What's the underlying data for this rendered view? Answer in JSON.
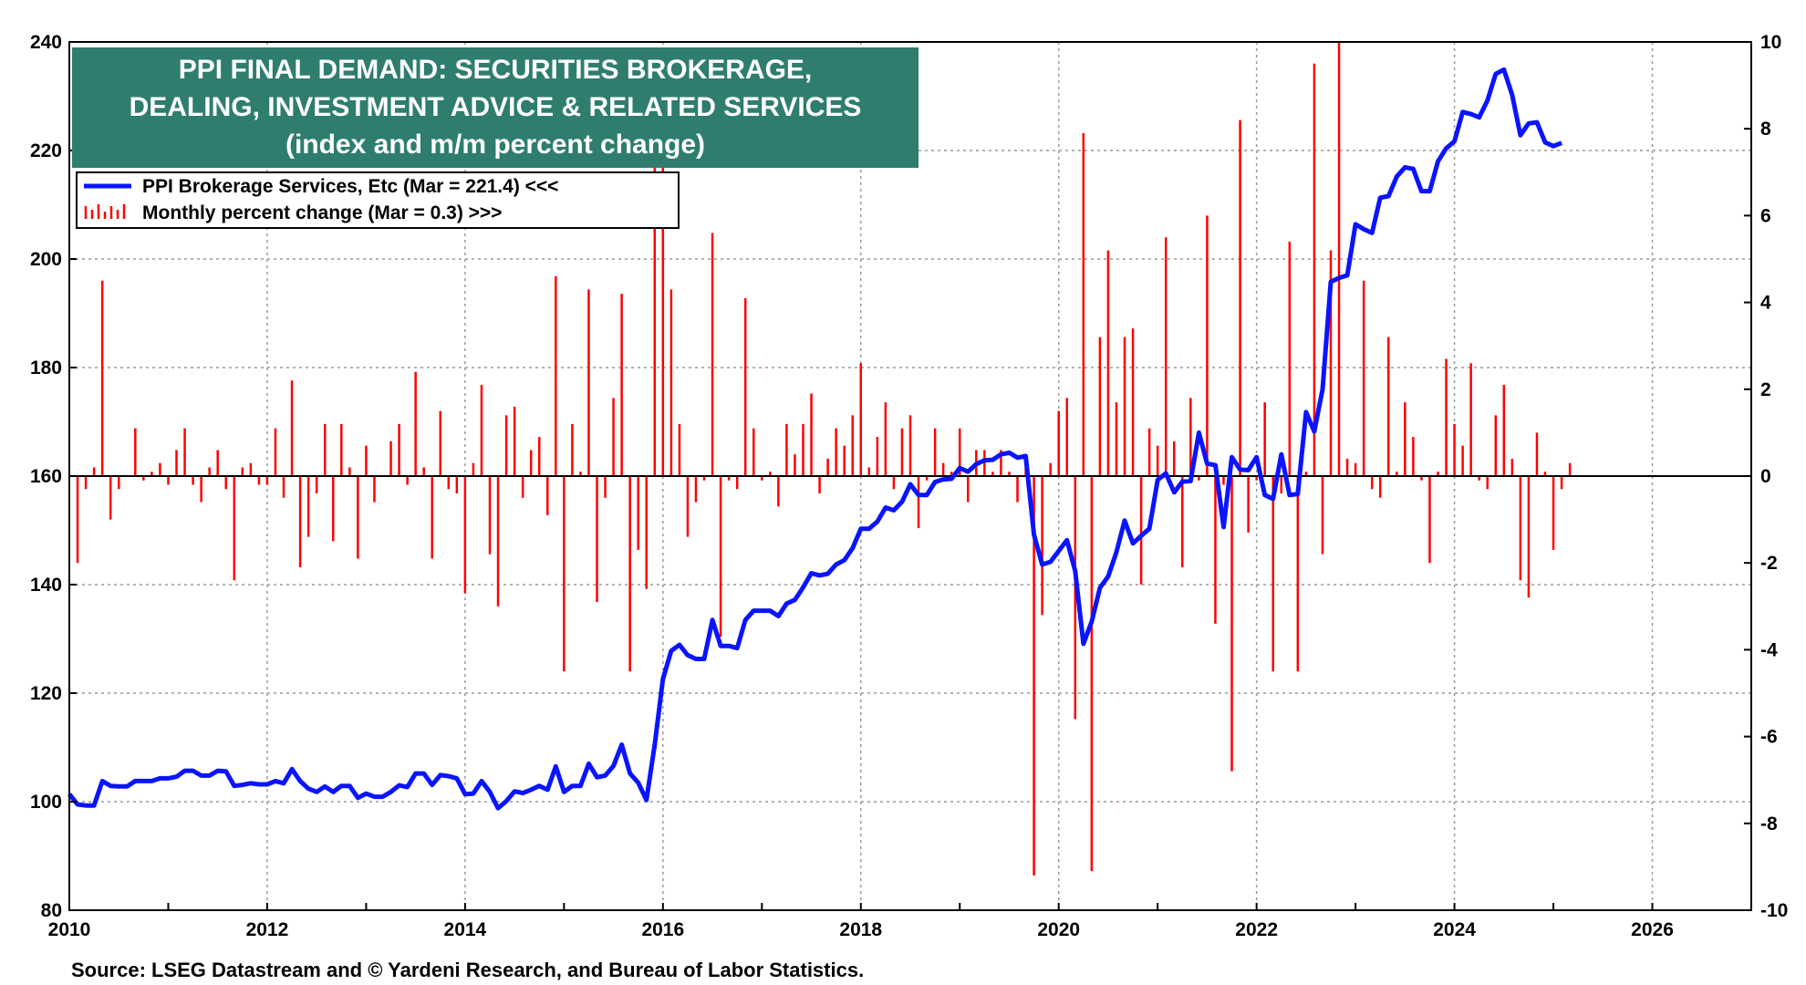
{
  "chart_data": {
    "type": "line+bar",
    "title": [
      "PPI FINAL DEMAND: SECURITIES BROKERAGE,",
      "DEALING, INVESTMENT ADVICE & RELATED SERVICES",
      "(index and m/m percent change)"
    ],
    "colors": {
      "title_bg": "#2e7d6e",
      "line": "#0a14ff",
      "bars": "#ff0000",
      "grid": "#9a9a9a"
    },
    "legend": [
      {
        "label": "PPI Brokerage Services, Etc  (Mar = 221.4) <<<",
        "style": "line"
      },
      {
        "label": "Monthly percent change  (Mar = 0.3) >>>",
        "style": "bars"
      }
    ],
    "x_axis": {
      "min": 2010,
      "max": 2027,
      "ticks": [
        "2010",
        "2012",
        "2014",
        "2016",
        "2018",
        "2020",
        "2022",
        "2024",
        "2026"
      ]
    },
    "y_left": {
      "min": 80,
      "max": 240,
      "ticks": [
        "80",
        "100",
        "120",
        "140",
        "160",
        "180",
        "200",
        "220",
        "240"
      ]
    },
    "y_right": {
      "min": -10,
      "max": 10,
      "ticks": [
        "-10",
        "-8",
        "-6",
        "-4",
        "-2",
        "0",
        "2",
        "4",
        "6",
        "8",
        "10"
      ]
    },
    "series_index": {
      "name": "PPI Brokerage Services, Etc",
      "start": 2010.0,
      "step": 0.0833333,
      "values": [
        101.4,
        99.5,
        99.3,
        99.3,
        103.8,
        102.9,
        102.8,
        102.8,
        103.8,
        103.8,
        103.8,
        104.3,
        104.3,
        104.6,
        105.7,
        105.7,
        104.8,
        104.8,
        105.7,
        105.6,
        102.9,
        103.1,
        103.4,
        103.2,
        103.2,
        103.8,
        103.4,
        106,
        103.8,
        102.4,
        101.8,
        102.8,
        101.8,
        102.9,
        102.9,
        100.7,
        101.5,
        100.9,
        100.9,
        101.8,
        103,
        102.7,
        105.2,
        105.2,
        103.1,
        104.9,
        104.7,
        104.3,
        101.4,
        101.5,
        103.8,
        101.8,
        98.8,
        100.1,
        101.9,
        101.6,
        102.2,
        102.9,
        102.2,
        106.5,
        101.8,
        102.9,
        102.9,
        107,
        104.5,
        104.8,
        106.6,
        110.5,
        105.2,
        103.5,
        100.3,
        110.5,
        122.6,
        127.8,
        128.9,
        127,
        126.3,
        126.3,
        133.5,
        128.7,
        128.7,
        128.3,
        133.5,
        135.2,
        135.2,
        135.2,
        134.2,
        136.5,
        137.2,
        139.5,
        142.1,
        141.7,
        142,
        143.7,
        144.5,
        146.7,
        150.3,
        150.3,
        151.6,
        154.2,
        153.7,
        155.3,
        158.5,
        156.5,
        156.5,
        158.9,
        159.4,
        159.5,
        161.5,
        160.8,
        162.2,
        162.9,
        163,
        164,
        164.3,
        163.4,
        163.7,
        149.2,
        143.7,
        144.2,
        146.2,
        148.2,
        142.5,
        129.1,
        133.2,
        139.4,
        141.5,
        146,
        151.8,
        147.6,
        149,
        150.3,
        159.3,
        160.5,
        157,
        159,
        159.1,
        168,
        162.3,
        162,
        150.6,
        163.5,
        161.2,
        161.1,
        163.5,
        156.5,
        155.8,
        164,
        156.5,
        156.7,
        171.8,
        168.2,
        176,
        195.8,
        196.5,
        197,
        206.4,
        205.5,
        204.8,
        211.3,
        211.6,
        215.2,
        216.9,
        216.6,
        212.5,
        212.5,
        218,
        220.4,
        221.7,
        227.1,
        226.7,
        226.1,
        229.2,
        234.1,
        234.9,
        230.2,
        222.8,
        225,
        225.2,
        221.5,
        220.8,
        221.4
      ]
    },
    "series_change": {
      "name": "Monthly percent change",
      "start": 2010.0,
      "step": 0.0833333,
      "values": [
        0,
        -2,
        -0.3,
        0.2,
        4.5,
        -1,
        -0.3,
        0,
        1.1,
        -0.1,
        0.1,
        0.3,
        -0.2,
        0.6,
        1.1,
        -0.2,
        -0.6,
        0.2,
        0.6,
        -0.3,
        -2.4,
        0.2,
        0.3,
        -0.2,
        -0.2,
        1.1,
        -0.5,
        2.2,
        -2.1,
        -1.4,
        -0.4,
        1.2,
        -1.5,
        1.2,
        0.2,
        -1.9,
        0.7,
        -0.6,
        0,
        0.8,
        1.2,
        -0.2,
        2.4,
        0.2,
        -1.9,
        1.5,
        -0.3,
        -0.4,
        -2.7,
        0.3,
        2.1,
        -1.8,
        -3,
        1.4,
        1.6,
        -0.5,
        0.6,
        0.9,
        -0.9,
        4.6,
        -4.5,
        1.2,
        0.1,
        4.3,
        -2.9,
        -0.5,
        1.8,
        4.2,
        -4.5,
        -1.7,
        -2.6,
        9.5,
        9.5,
        4.3,
        1.2,
        -1.4,
        -0.6,
        -0.1,
        5.6,
        -3.7,
        -0.1,
        -0.3,
        4.1,
        1.1,
        -0.1,
        0.1,
        -0.7,
        1.2,
        0.5,
        1.2,
        1.9,
        -0.4,
        0.4,
        1.1,
        0.7,
        1.4,
        2.6,
        0.2,
        0.9,
        1.7,
        -0.3,
        1.1,
        1.4,
        -1.2,
        -0.1,
        1.1,
        0.3,
        0.1,
        1.1,
        -0.6,
        0.6,
        0.6,
        0.1,
        0.6,
        0.1,
        -0.6,
        0.2,
        -9.2,
        -3.2,
        0.3,
        1.5,
        1.8,
        -5.6,
        7.9,
        -9.1,
        3.2,
        5.2,
        1.7,
        3.2,
        3.4,
        -2.5,
        1.1,
        0.7,
        5.5,
        0.8,
        -2.1,
        1.8,
        -0.1,
        6.0,
        -3.4,
        -0.2,
        -6.8,
        8.2,
        -1.3,
        -0.1,
        1.7,
        -4.5,
        -0.4,
        5.4,
        -4.5,
        0.1,
        9.5,
        -1.8,
        5.2,
        10,
        0.4,
        0.3,
        4.5,
        -0.3,
        -0.5,
        3.2,
        0.1,
        1.7,
        0.9,
        -0.1,
        -2.0,
        0.1,
        2.7,
        1.2,
        0.7,
        2.6,
        -0.1,
        -0.3,
        1.4,
        2.1,
        0.4,
        -2.4,
        -2.8,
        1.0,
        0.1,
        -1.7,
        -0.3,
        0.3
      ]
    },
    "source": "Source: LSEG Datastream and © Yardeni Research, and Bureau of Labor Statistics."
  }
}
